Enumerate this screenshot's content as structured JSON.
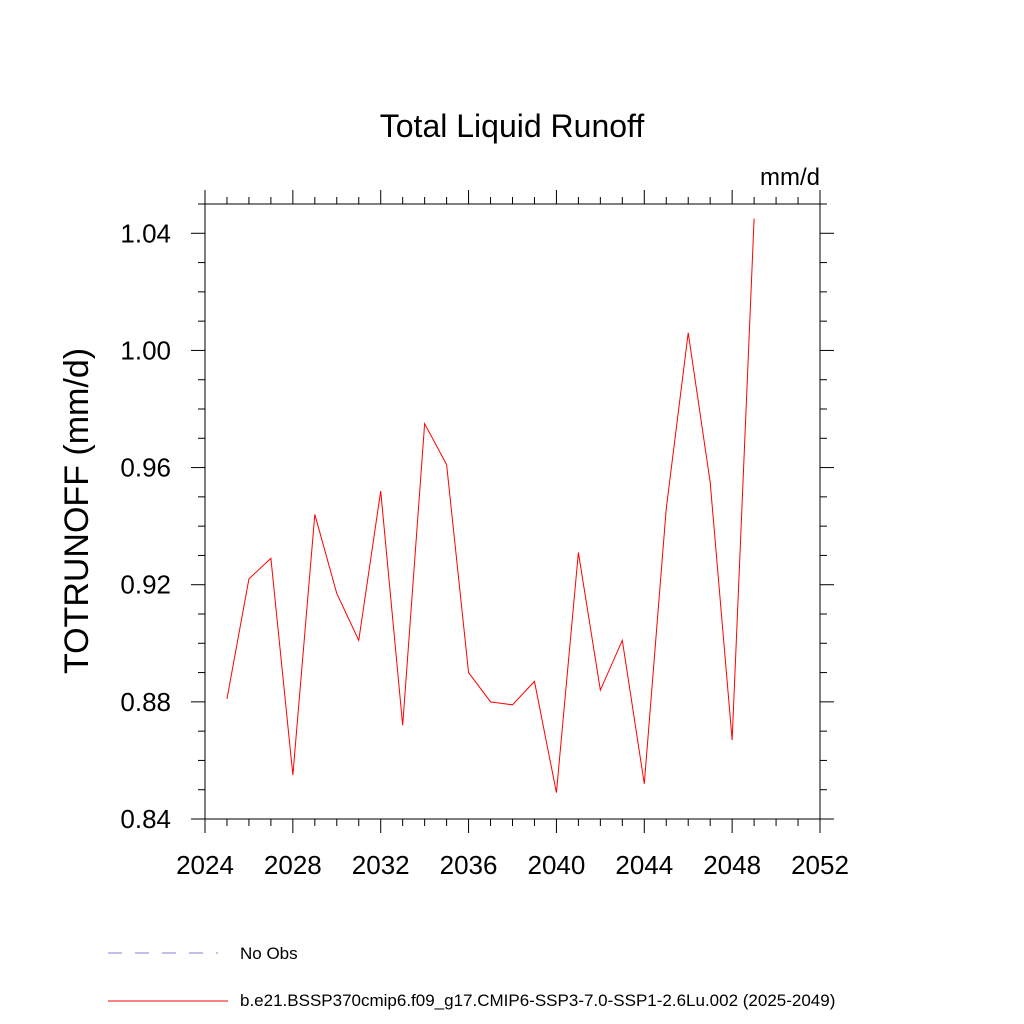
{
  "chart_data": {
    "type": "line",
    "title": "Total Liquid Runoff",
    "units_label": "mm/d",
    "ylabel": "TOTRUNOFF  (mm/d)",
    "xlabel": "",
    "xlim": [
      2024,
      2052
    ],
    "ylim": [
      0.84,
      1.05
    ],
    "x_ticks": [
      2024,
      2028,
      2032,
      2036,
      2040,
      2044,
      2048,
      2052
    ],
    "x_tick_labels": [
      "2024",
      "2028",
      "2032",
      "2036",
      "2040",
      "2044",
      "2048",
      "2052"
    ],
    "y_ticks": [
      0.84,
      0.88,
      0.92,
      0.96,
      1.0,
      1.04
    ],
    "y_tick_labels": [
      "0.84",
      "0.88",
      "0.92",
      "0.96",
      "1.00",
      "1.04"
    ],
    "x_minor_step": 1,
    "y_minor_step": 0.01,
    "grid": false,
    "series": [
      {
        "name": "b.e21.BSSP370cmip6.f09_g17.CMIP6-SSP3-7.0-SSP1-2.6Lu.002 (2025-2049)",
        "color": "#ff0000",
        "x": [
          2025,
          2026,
          2027,
          2028,
          2029,
          2030,
          2031,
          2032,
          2033,
          2034,
          2035,
          2036,
          2037,
          2038,
          2039,
          2040,
          2041,
          2042,
          2043,
          2044,
          2045,
          2046,
          2047,
          2048,
          2049
        ],
        "values": [
          0.881,
          0.922,
          0.929,
          0.855,
          0.944,
          0.917,
          0.901,
          0.952,
          0.872,
          0.975,
          0.961,
          0.89,
          0.88,
          0.879,
          0.887,
          0.849,
          0.931,
          0.884,
          0.901,
          0.852,
          0.946,
          1.006,
          0.955,
          0.867,
          1.045
        ]
      }
    ],
    "legend": [
      {
        "label": "No Obs",
        "style": "dashed",
        "color": "#8080d0"
      },
      {
        "label": "b.e21.BSSP370cmip6.f09_g17.CMIP6-SSP3-7.0-SSP1-2.6Lu.002 (2025-2049)",
        "style": "solid",
        "color": "#ff0000"
      }
    ],
    "legend_position": "bottom-left"
  }
}
